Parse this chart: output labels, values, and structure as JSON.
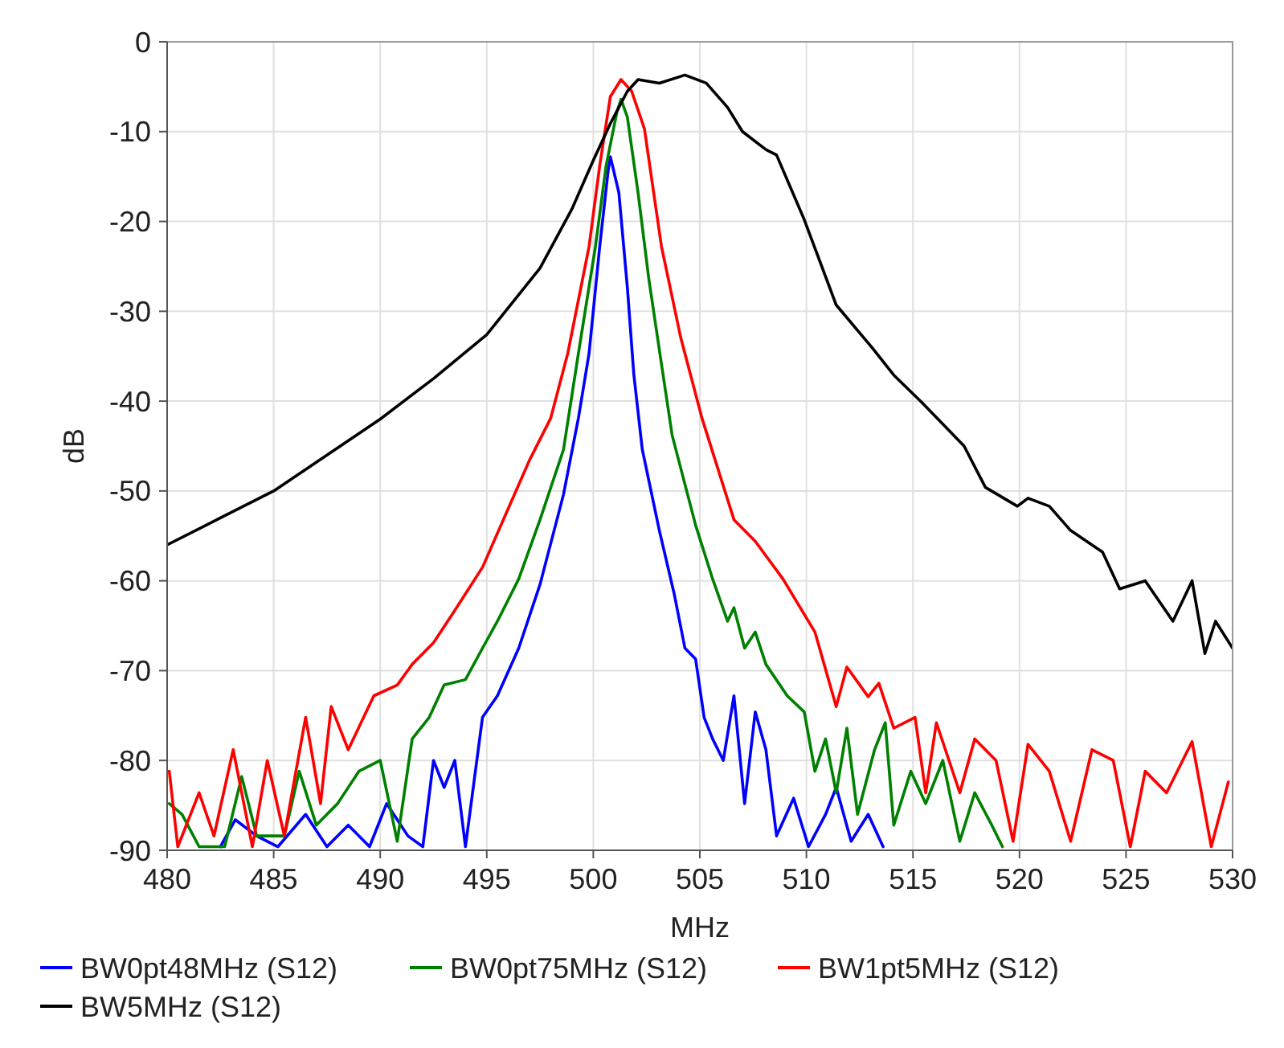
{
  "chart_data": {
    "type": "line",
    "xlabel": "MHz",
    "ylabel": "dB",
    "xlim": [
      480,
      530
    ],
    "ylim": [
      -90,
      0
    ],
    "xticks": [
      480,
      485,
      490,
      495,
      500,
      505,
      510,
      515,
      520,
      525,
      530
    ],
    "yticks": [
      0,
      -10,
      -20,
      -30,
      -40,
      -50,
      -60,
      -70,
      -80,
      -90
    ],
    "grid": true,
    "legend": "bottom",
    "marker": "none",
    "line_style": "solid",
    "series": [
      {
        "name": "BW0pt48MHz (S12)",
        "color": "#0000ff",
        "x": [
          482.5,
          483.2,
          484.2,
          485.2,
          486.5,
          487.5,
          488.5,
          489.5,
          490.3,
          491.3,
          492,
          492.5,
          493,
          493.5,
          494,
          494.8,
          495.5,
          496.5,
          497.5,
          498.6,
          499.3,
          499.8,
          500.3,
          500.7,
          500.8,
          501.2,
          501.6,
          501.9,
          502.3,
          503.1,
          503.8,
          504.3,
          504.8,
          505.2,
          505.6,
          506.1,
          506.6,
          507.1,
          507.6,
          508.1,
          508.6,
          509.4,
          510.1,
          510.9,
          511.4,
          512.1,
          512.9,
          513.6
        ],
        "values": [
          -89.6,
          -86.6,
          -88.4,
          -89.6,
          -86,
          -89.6,
          -87.2,
          -89.6,
          -84.8,
          -88.4,
          -89.6,
          -80,
          -83,
          -80,
          -89.6,
          -75.2,
          -72.8,
          -67.5,
          -60.4,
          -50.4,
          -41.9,
          -34.7,
          -22.8,
          -14.3,
          -12.8,
          -16.8,
          -27.4,
          -37,
          -45.4,
          -54.4,
          -61.5,
          -67.5,
          -68.7,
          -75.2,
          -77.6,
          -80,
          -72.8,
          -84.8,
          -74.6,
          -78.8,
          -88.4,
          -84.2,
          -89.6,
          -86,
          -83,
          -89,
          -86,
          -89.6
        ]
      },
      {
        "name": "BW0pt75MHz (S12)",
        "color": "#008000",
        "x": [
          480.1,
          480.7,
          481.5,
          482.7,
          483.5,
          484.2,
          485.5,
          486.2,
          487,
          488,
          489,
          490,
          490.8,
          491.5,
          492.3,
          493,
          494,
          494.8,
          495.5,
          496.5,
          497.5,
          498.6,
          499.3,
          500.1,
          500.6,
          501.1,
          501.3,
          501.6,
          502.1,
          502.6,
          503.2,
          503.7,
          504.8,
          505.6,
          506.3,
          506.6,
          507.1,
          507.6,
          508.1,
          509.1,
          509.9,
          510.4,
          510.9,
          511.4,
          511.9,
          512.4,
          513.2,
          513.7,
          514.1,
          514.9,
          515.6,
          516.4,
          517.2,
          517.9,
          518.7,
          519.2
        ],
        "values": [
          -84.8,
          -86,
          -89.6,
          -89.6,
          -81.8,
          -88.4,
          -88.4,
          -81.2,
          -87.2,
          -84.8,
          -81.2,
          -80,
          -89,
          -77.6,
          -75.2,
          -71.6,
          -71,
          -67.5,
          -64.5,
          -59.8,
          -53.2,
          -45.4,
          -34.7,
          -22.8,
          -13.8,
          -7.9,
          -6.4,
          -8.4,
          -16.8,
          -26.3,
          -35.9,
          -43.8,
          -53.8,
          -59.8,
          -64.5,
          -63,
          -67.5,
          -65.7,
          -69.3,
          -72.8,
          -74.6,
          -81.2,
          -77.6,
          -83.6,
          -76.4,
          -86,
          -78.8,
          -75.8,
          -87.2,
          -81.2,
          -84.8,
          -80,
          -89,
          -83.6,
          -87.2,
          -89.6
        ]
      },
      {
        "name": "BW1pt5MHz (S12)",
        "color": "#ff0000",
        "x": [
          480.1,
          480.5,
          481.5,
          482.2,
          483.1,
          484,
          484.7,
          485.5,
          486.5,
          487.2,
          487.7,
          488.5,
          489.7,
          490.8,
          491.5,
          492.5,
          493.5,
          494.8,
          496,
          497,
          498,
          498.8,
          499.8,
          500.3,
          500.8,
          501.3,
          501.8,
          502.4,
          503.2,
          504.1,
          505.1,
          506.6,
          507.6,
          508.9,
          510.4,
          511.4,
          511.9,
          512.9,
          513.4,
          514.1,
          515.1,
          515.6,
          516.1,
          517.2,
          517.9,
          518.9,
          519.7,
          520.4,
          521.4,
          522.4,
          523.4,
          524.4,
          525.2,
          525.9,
          526.9,
          528.1,
          529,
          529.8
        ],
        "values": [
          -81.2,
          -89.6,
          -83.6,
          -88.4,
          -78.8,
          -89.6,
          -80,
          -88.4,
          -75.2,
          -84.8,
          -74,
          -78.8,
          -72.8,
          -71.6,
          -69.3,
          -66.9,
          -63.3,
          -58.5,
          -52,
          -46.6,
          -41.9,
          -34.7,
          -22.8,
          -13.8,
          -6.1,
          -4.2,
          -5.5,
          -9.7,
          -22.8,
          -32.9,
          -41.9,
          -53.2,
          -55.6,
          -59.8,
          -65.7,
          -74,
          -69.6,
          -72.9,
          -71.4,
          -76.4,
          -75.2,
          -83.6,
          -75.8,
          -83.6,
          -77.6,
          -80,
          -89,
          -78.2,
          -81.2,
          -89,
          -78.8,
          -80,
          -89.6,
          -81.2,
          -83.6,
          -77.9,
          -89.6,
          -82.4
        ]
      },
      {
        "name": "BW5MHz (S12)",
        "color": "#000000",
        "x": [
          480,
          482.5,
          485,
          487.5,
          490,
          492.5,
          495,
          497.5,
          499,
          500,
          500.8,
          501.6,
          502.1,
          503.1,
          504.3,
          505.3,
          506.3,
          507,
          508.1,
          508.6,
          509.9,
          511.4,
          513.1,
          514.1,
          515.4,
          517.4,
          518.4,
          519.9,
          520.4,
          521.4,
          522.4,
          523.9,
          524.7,
          525.9,
          527.2,
          528.1,
          528.7,
          529.2,
          530
        ],
        "values": [
          -56,
          -53,
          -50,
          -46,
          -42,
          -37.5,
          -32.6,
          -25.2,
          -18.6,
          -13.2,
          -9.1,
          -5.5,
          -4.2,
          -4.6,
          -3.7,
          -4.6,
          -7.3,
          -10,
          -12,
          -12.6,
          -19.8,
          -29.3,
          -34.1,
          -37.1,
          -40.1,
          -45,
          -49.6,
          -51.7,
          -50.8,
          -51.7,
          -54.4,
          -56.8,
          -60.9,
          -60,
          -64.5,
          -60,
          -68.1,
          -64.5,
          -67.5
        ]
      }
    ]
  }
}
